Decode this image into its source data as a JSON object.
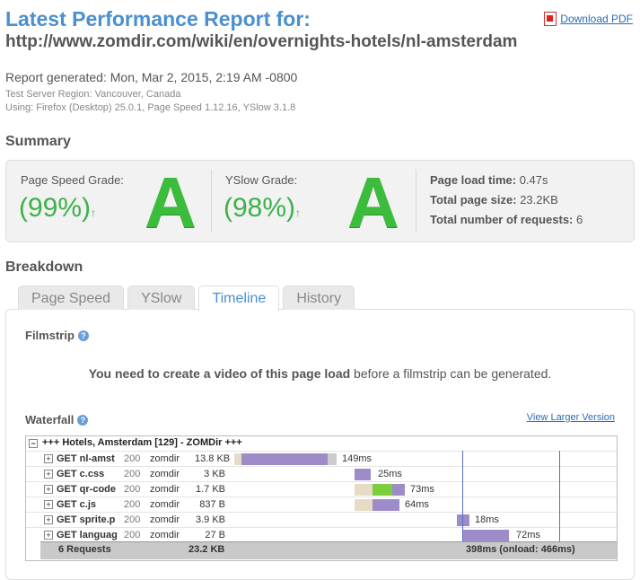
{
  "header": {
    "title": "Latest Performance Report for:",
    "url": "http://www.zomdir.com/wiki/en/overnights-hotels/nl-amsterdam",
    "download_pdf": "Download PDF"
  },
  "report": {
    "generated": "Report generated: Mon, Mar 2, 2015, 2:19 AM -0800",
    "region": "Test Server Region: Vancouver, Canada",
    "using": "Using: Firefox (Desktop) 25.0.1, Page Speed 1.12.16, YSlow 3.1.8"
  },
  "summary": {
    "heading": "Summary",
    "pagespeed_label": "Page Speed Grade:",
    "pagespeed_value": "(99%)",
    "pagespeed_letter": "A",
    "yslow_label": "YSlow Grade:",
    "yslow_value": "(98%)",
    "yslow_letter": "A",
    "trend_arrow": "↑",
    "load_time_label": "Page load time:",
    "load_time": "0.47s",
    "page_size_label": "Total page size:",
    "page_size": "23.2KB",
    "requests_label": "Total number of requests:",
    "requests": "6",
    "grade_color": "#3cbc3c"
  },
  "breakdown": {
    "heading": "Breakdown",
    "tabs": [
      "Page Speed",
      "YSlow",
      "Timeline",
      "History"
    ],
    "active_tab": "Timeline"
  },
  "filmstrip": {
    "heading": "Filmstrip",
    "message_bold": "You need to create a video of this page load",
    "message_rest": " before a filmstrip can be generated."
  },
  "waterfall": {
    "heading": "Waterfall",
    "view_larger": "View Larger Version",
    "group_title": "+++ Hotels, Amsterdam [129] - ZOMDir +++",
    "expander_plus": "+",
    "expander_minus": "−",
    "rows": [
      {
        "req": "GET nl-amst",
        "status": "200",
        "domain": "zomdir",
        "size": "13.8 KB",
        "time": "149ms"
      },
      {
        "req": "GET c.css",
        "status": "200",
        "domain": "zomdir",
        "size": "3 KB",
        "time": "25ms"
      },
      {
        "req": "GET qr-code",
        "status": "200",
        "domain": "zomdir",
        "size": "1.7 KB",
        "time": "73ms"
      },
      {
        "req": "GET c.js",
        "status": "200",
        "domain": "zomdir",
        "size": "837 B",
        "time": "64ms"
      },
      {
        "req": "GET sprite.p",
        "status": "200",
        "domain": "zomdir",
        "size": "3.9 KB",
        "time": "18ms"
      },
      {
        "req": "GET languag",
        "status": "200",
        "domain": "zomdir",
        "size": "27 B",
        "time": "72ms"
      }
    ],
    "footer": {
      "requests": "6 Requests",
      "size": "23.2 KB",
      "time": "398ms (onload: 466ms)"
    }
  }
}
